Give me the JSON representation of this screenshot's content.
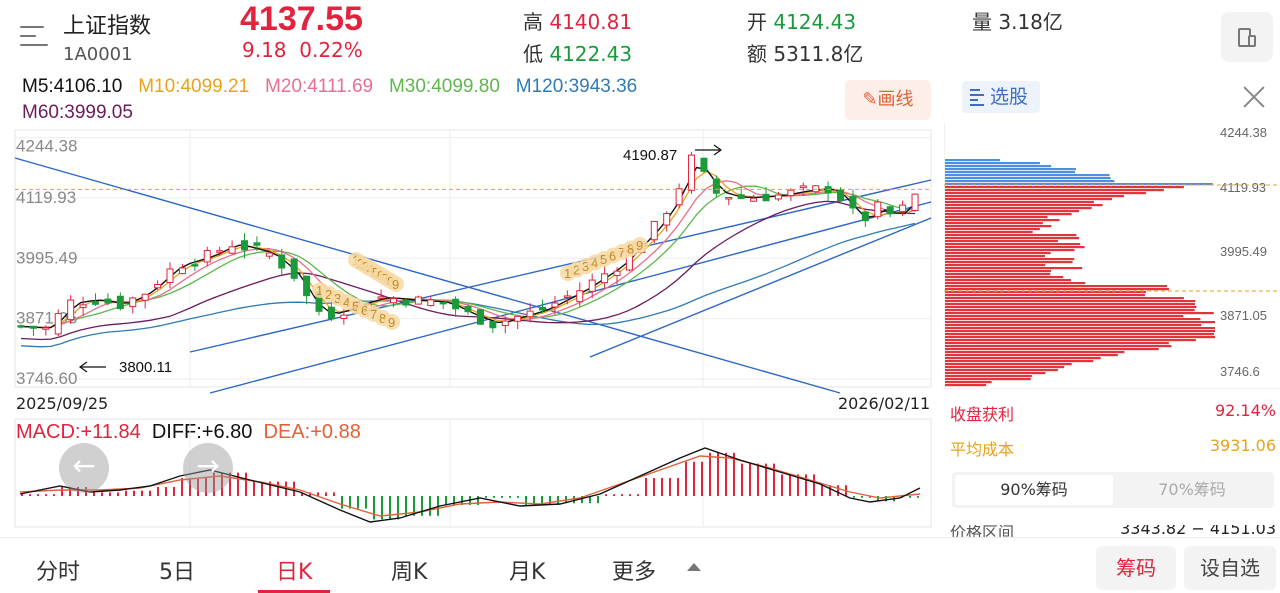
{
  "header": {
    "name": "上证指数",
    "code": "1A0001",
    "price": "4137.55",
    "change": "9.18",
    "change_pct": "0.22%",
    "high_label": "高",
    "high": "4140.81",
    "low_label": "低",
    "low": "4122.43",
    "open_label": "开",
    "open": "4124.43",
    "amount_label": "额",
    "amount": "5311.8亿",
    "volume_label": "量",
    "volume": "3.18亿"
  },
  "ma": [
    {
      "label": "M5:",
      "value": "4106.10",
      "color": "#111111"
    },
    {
      "label": "M10:",
      "value": "4099.21",
      "color": "#e8a21c"
    },
    {
      "label": "M20:",
      "value": "4111.69",
      "color": "#e86f8f"
    },
    {
      "label": "M30:",
      "value": "4099.80",
      "color": "#5cb84a"
    },
    {
      "label": "M120:",
      "value": "3943.36",
      "color": "#2e7bb6"
    },
    {
      "label": "M60:",
      "value": "3999.05",
      "color": "#6b1c5e"
    }
  ],
  "draw_button": "画线",
  "main_chart": {
    "y_ticks": [
      "4244.38",
      "4119.93",
      "3995.49",
      "3871.05",
      "3746.60"
    ],
    "high_annotation": "4190.87",
    "low_annotation": "3800.11",
    "start_date": "2025/09/25",
    "end_date": "2026/02/11",
    "seq_labels_a": [
      "1",
      "2",
      "3",
      "4",
      "5",
      "6",
      "7",
      "8",
      "9"
    ],
    "seq_labels_b": [
      "1",
      "2",
      "3",
      "4",
      "5",
      "6",
      "7",
      "8",
      "9"
    ],
    "seq_labels_c": [
      "1",
      "2",
      "3",
      "4",
      "5",
      "6",
      "7",
      "8",
      "9"
    ]
  },
  "macd": {
    "macd_label": "MACD:+11.84",
    "diff_label": "DIFF:+6.80",
    "dea_label": "DEA:+0.88"
  },
  "right_panel": {
    "select_stock": "选股",
    "y_ticks": [
      "4244.38",
      "4119.93",
      "3995.49",
      "3871.05",
      "3746.6"
    ],
    "profit_label": "收盘获利",
    "profit_value": "92.14%",
    "cost_label": "平均成本",
    "cost_value": "3931.06",
    "tab_90": "90%筹码",
    "tab_70": "70%筹码",
    "range_label": "价格区间",
    "range_value": "3343.82 − 4151.03"
  },
  "bottom_tabs": [
    "分时",
    "5日",
    "日K",
    "周K",
    "月K",
    "更多"
  ],
  "active_tab": "日K",
  "chip_button": "筹码",
  "watch_button": "设自选",
  "colors": {
    "up": "#e2233e",
    "down": "#1a9a3a",
    "accent": "#e2233e"
  },
  "icons": [
    "menu-icon",
    "phone-icon",
    "pencil-icon",
    "list-icon",
    "close-icon",
    "arrow-left-icon",
    "arrow-right-icon",
    "caret-up-icon"
  ]
}
